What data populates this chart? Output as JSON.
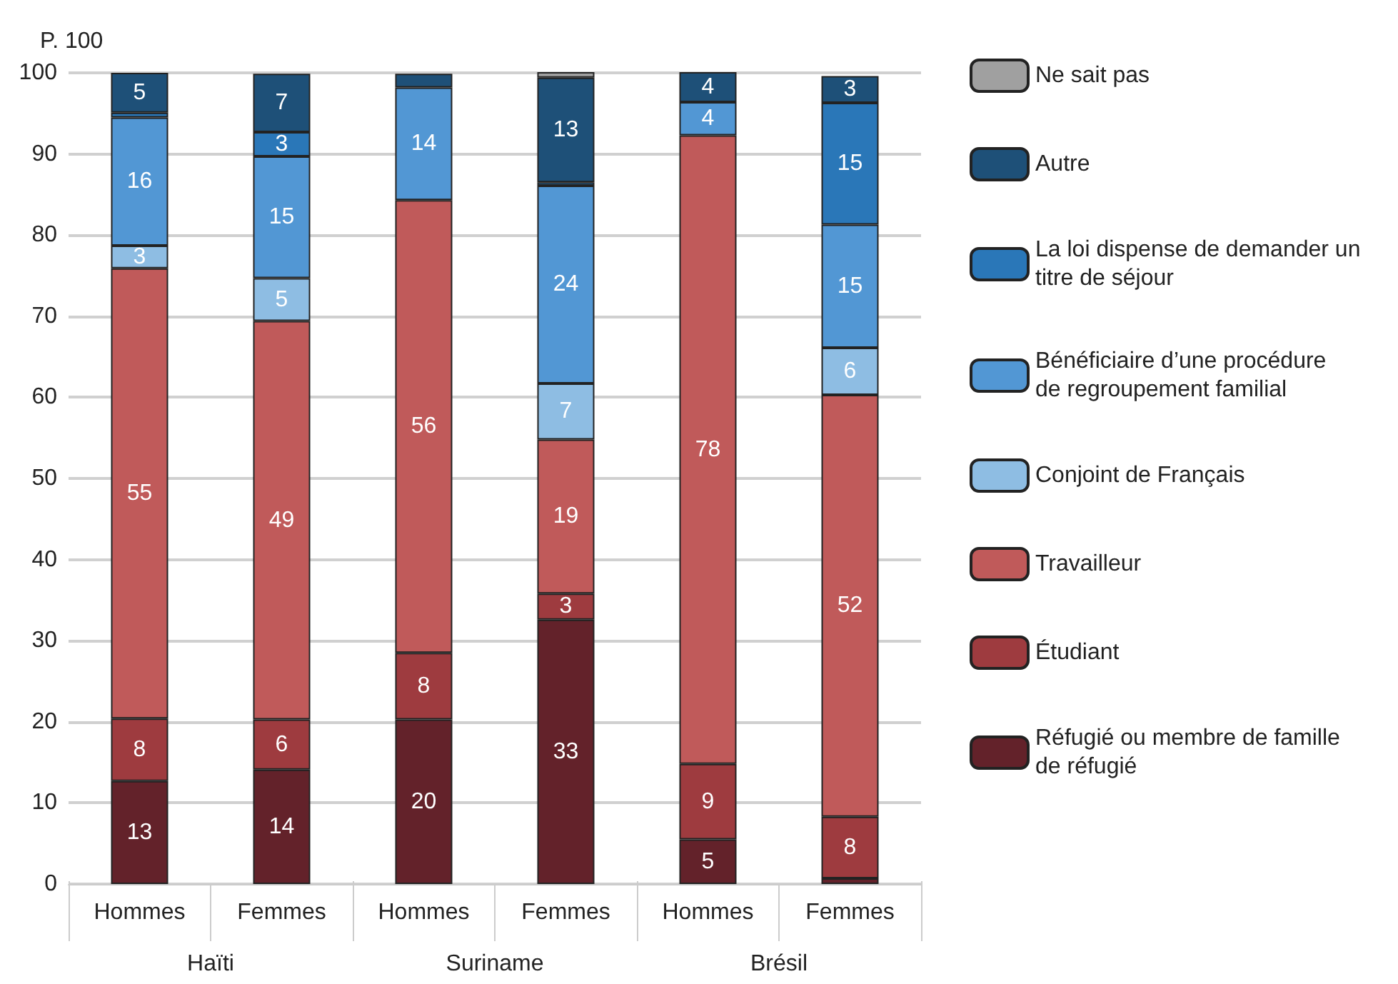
{
  "chart_data": {
    "type": "bar",
    "stacked": true,
    "ylabel": "P. 100",
    "categories": [
      "Hommes",
      "Femmes",
      "Hommes",
      "Femmes",
      "Hommes",
      "Femmes"
    ],
    "annotations": [
      "Haïti",
      "Suriname",
      "Brésil"
    ],
    "ylim": [
      0,
      100
    ],
    "yticks": [
      0,
      10,
      20,
      30,
      40,
      50,
      60,
      70,
      80,
      90,
      100
    ],
    "grid": "y",
    "legend": "right",
    "series": [
      {
        "name": "Réfugié ou membre de famille de réfugié",
        "color": "#63222a",
        "values": [
          12.7,
          14.1,
          20.3,
          32.6,
          5.5,
          0.7
        ],
        "value_labels": [
          "13",
          "14",
          "20",
          "33",
          "5",
          null
        ]
      },
      {
        "name": "Étudiant",
        "color": "#9e3b3f",
        "values": [
          7.7,
          6.2,
          8.2,
          3.2,
          9.3,
          7.6
        ],
        "value_labels": [
          "8",
          "6",
          "8",
          "3",
          "9",
          "8"
        ]
      },
      {
        "name": "Travailleur",
        "color": "#c05a5a",
        "values": [
          55.5,
          49.1,
          55.8,
          19.0,
          77.5,
          52.0
        ],
        "value_labels": [
          "55",
          "49",
          "56",
          "19",
          "78",
          "52"
        ]
      },
      {
        "name": "Conjoint de Français",
        "color": "#8ebde3",
        "values": [
          2.8,
          5.3,
          null,
          6.9,
          null,
          5.8
        ],
        "value_labels": [
          "3",
          "5",
          null,
          "7",
          null,
          "6"
        ]
      },
      {
        "name": "Bénéficiaire d’une procédure de regroupement familial",
        "color": "#5297d4",
        "values": [
          15.8,
          15.0,
          13.9,
          24.4,
          4.1,
          15.2
        ],
        "value_labels": [
          "16",
          "15",
          "14",
          "24",
          "4",
          "15"
        ]
      },
      {
        "name": "La loi dispense de demander un titre de séjour",
        "color": "#2a77b8",
        "values": [
          0.6,
          3.0,
          null,
          0.4,
          null,
          15.0
        ],
        "value_labels": [
          null,
          "3",
          null,
          null,
          null,
          "15"
        ]
      },
      {
        "name": "Autre",
        "color": "#1e5078",
        "values": [
          4.9,
          7.2,
          1.7,
          12.9,
          3.9,
          3.3
        ],
        "value_labels": [
          "5",
          "7",
          null,
          "13",
          "4",
          "3"
        ]
      },
      {
        "name": "Ne sait pas",
        "color": "#a0a0a0",
        "values": [
          null,
          null,
          null,
          0.7,
          null,
          null
        ],
        "value_labels": [
          null,
          null,
          null,
          null,
          null,
          null
        ]
      }
    ]
  }
}
